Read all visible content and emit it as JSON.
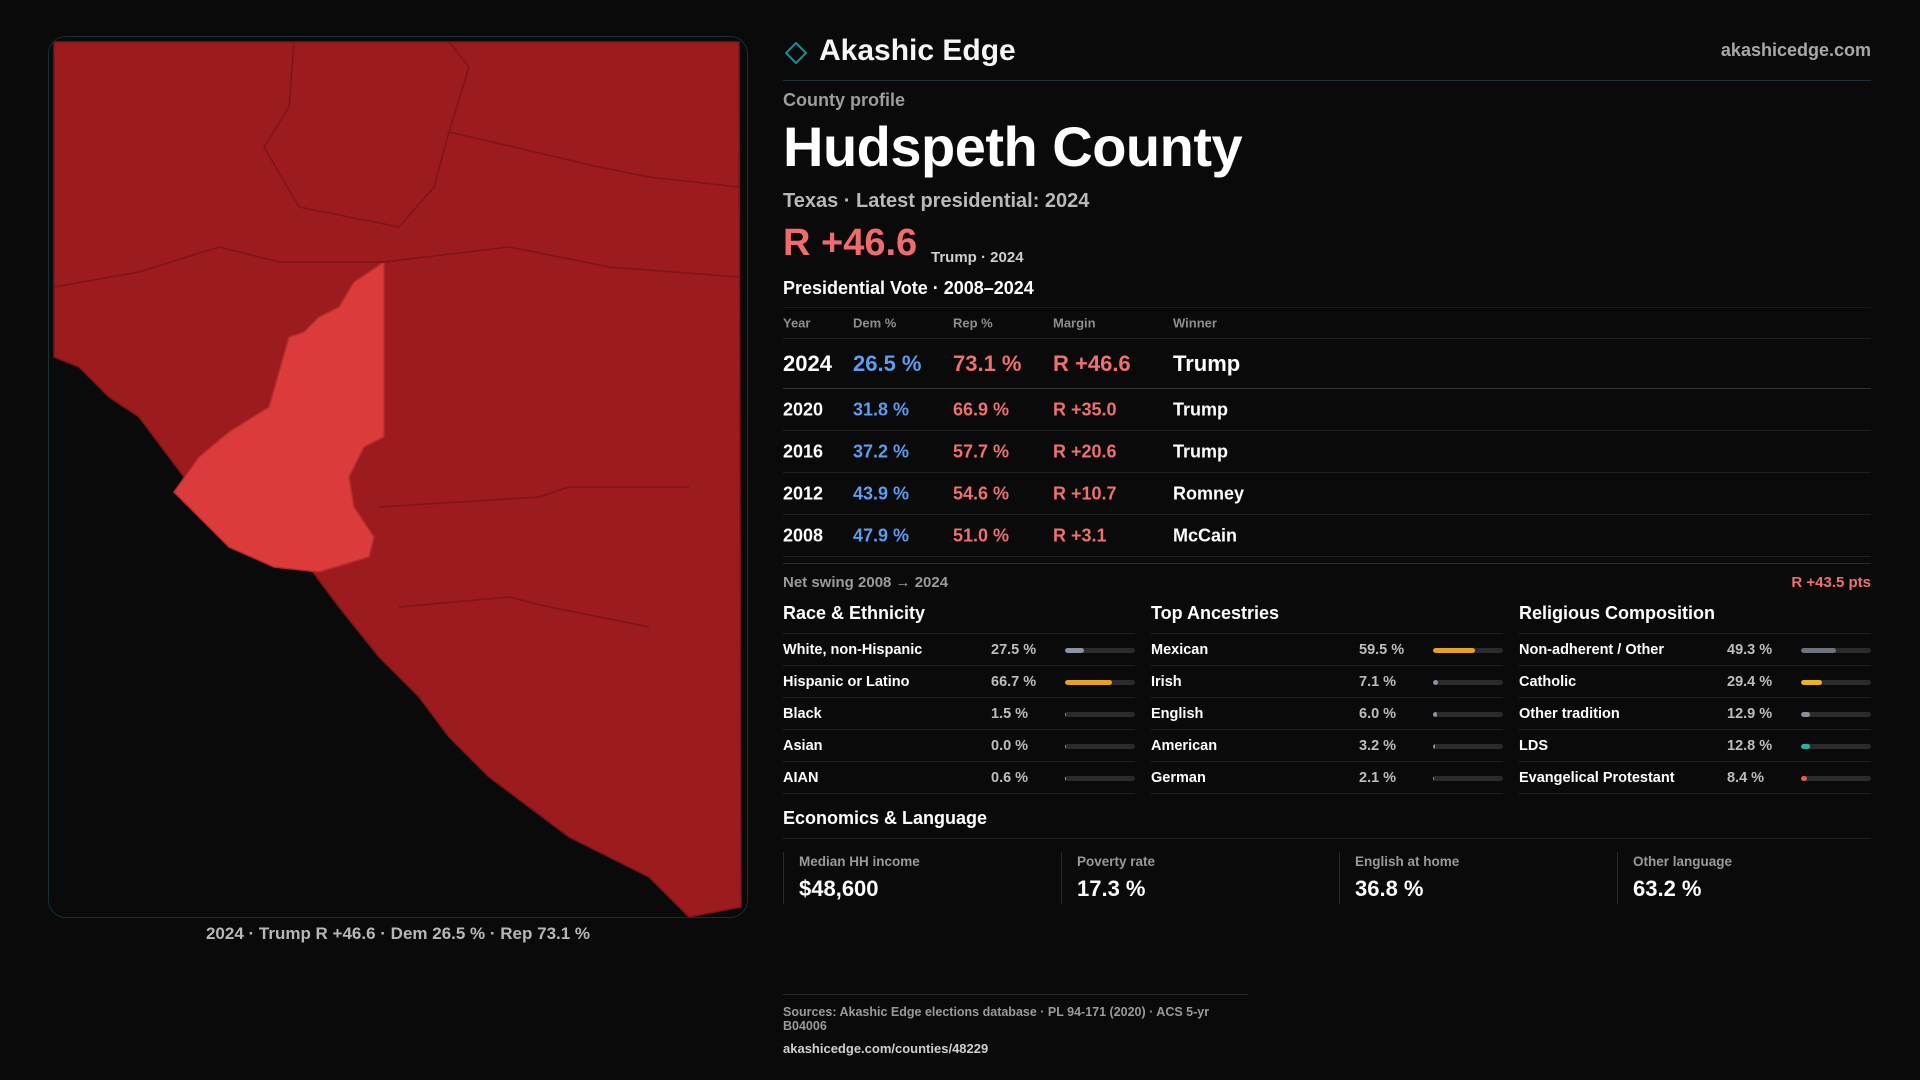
{
  "brand": {
    "name": "Akashic Edge",
    "site": "akashicedge.com"
  },
  "colors": {
    "rep": "#f07070",
    "dem": "#5b9df2",
    "map_county": "#9b1b1e",
    "map_highlight": "#dc3b3c",
    "accent": "#1c8c9a"
  },
  "profile": {
    "kicker": "County profile",
    "county": "Hudspeth County",
    "subline": "Texas · Latest presidential: 2024",
    "margin": "R +46.6",
    "margin_note": "Trump · 2024"
  },
  "map": {
    "caption": "2024 · Trump R +46.6 · Dem 26.5 % · Rep 73.1 %"
  },
  "vote": {
    "title": "Presidential Vote · 2008–2024",
    "headers": {
      "year": "Year",
      "dem": "Dem %",
      "rep": "Rep %",
      "margin": "Margin",
      "winner": "Winner"
    },
    "rows": [
      {
        "year": "2024",
        "dem": "26.5 %",
        "rep": "73.1 %",
        "margin": "R +46.6",
        "winner": "Trump"
      },
      {
        "year": "2020",
        "dem": "31.8 %",
        "rep": "66.9 %",
        "margin": "R +35.0",
        "winner": "Trump"
      },
      {
        "year": "2016",
        "dem": "37.2 %",
        "rep": "57.7 %",
        "margin": "R +20.6",
        "winner": "Trump"
      },
      {
        "year": "2012",
        "dem": "43.9 %",
        "rep": "54.6 %",
        "margin": "R +10.7",
        "winner": "Romney"
      },
      {
        "year": "2008",
        "dem": "47.9 %",
        "rep": "51.0 %",
        "margin": "R +3.1",
        "winner": "McCain"
      }
    ],
    "swing_label": "Net swing 2008 → 2024",
    "swing_value": "R +43.5 pts"
  },
  "race": {
    "title": "Race & Ethnicity",
    "items": [
      {
        "label": "White, non-Hispanic",
        "value": "27.5 %",
        "pct": 27.5,
        "color": "#8a93a3"
      },
      {
        "label": "Hispanic or Latino",
        "value": "66.7 %",
        "pct": 66.7,
        "color": "#e6a21c"
      },
      {
        "label": "Black",
        "value": "1.5 %",
        "pct": 1.5,
        "color": "#8a93a3"
      },
      {
        "label": "Asian",
        "value": "0.0 %",
        "pct": 0.0,
        "color": "#8a93a3"
      },
      {
        "label": "AIAN",
        "value": "0.6 %",
        "pct": 0.6,
        "color": "#e6a21c"
      }
    ]
  },
  "ancestry": {
    "title": "Top Ancestries",
    "items": [
      {
        "label": "Mexican",
        "value": "59.5 %",
        "pct": 59.5,
        "color": "#e6a21c"
      },
      {
        "label": "Irish",
        "value": "7.1 %",
        "pct": 7.1,
        "color": "#8a93a3"
      },
      {
        "label": "English",
        "value": "6.0 %",
        "pct": 6.0,
        "color": "#8a93a3"
      },
      {
        "label": "American",
        "value": "3.2 %",
        "pct": 3.2,
        "color": "#8a93a3"
      },
      {
        "label": "German",
        "value": "2.1 %",
        "pct": 2.1,
        "color": "#8a93a3"
      }
    ]
  },
  "religion": {
    "title": "Religious Composition",
    "items": [
      {
        "label": "Non-adherent / Other",
        "value": "49.3 %",
        "pct": 49.3,
        "color": "#6f7380"
      },
      {
        "label": "Catholic",
        "value": "29.4 %",
        "pct": 29.4,
        "color": "#e6b61c"
      },
      {
        "label": "Other tradition",
        "value": "12.9 %",
        "pct": 12.9,
        "color": "#8a8f99"
      },
      {
        "label": "LDS",
        "value": "12.8 %",
        "pct": 12.8,
        "color": "#25b5a6"
      },
      {
        "label": "Evangelical Protestant",
        "value": "8.4 %",
        "pct": 8.4,
        "color": "#e05c5c"
      }
    ]
  },
  "economics": {
    "title": "Economics & Language",
    "items": [
      {
        "label": "Median HH income",
        "value": "$48,600"
      },
      {
        "label": "Poverty rate",
        "value": "17.3 %"
      },
      {
        "label": "English at home",
        "value": "36.8 %"
      },
      {
        "label": "Other language",
        "value": "63.2 %"
      }
    ]
  },
  "footer": {
    "sources": "Sources: Akashic Edge elections database · PL 94-171 (2020) · ACS 5-yr B04006",
    "url": "akashicedge.com/counties/48229"
  }
}
